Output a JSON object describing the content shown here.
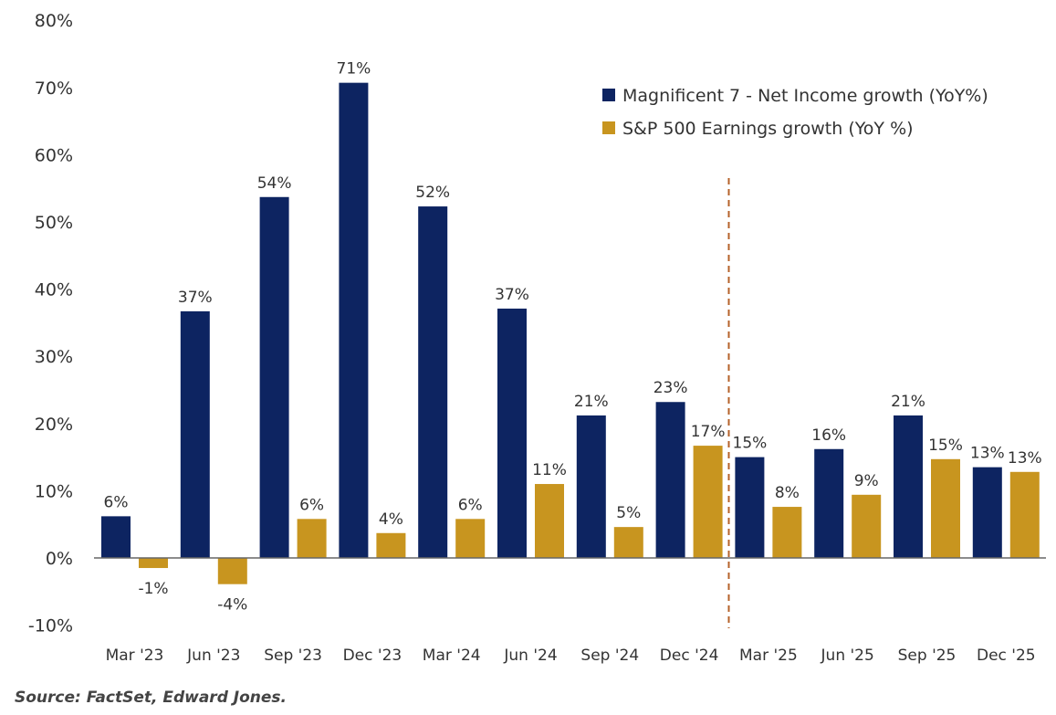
{
  "chart_data": {
    "type": "bar",
    "title": "",
    "xlabel": "",
    "ylabel": "",
    "ylim": [
      -10,
      80
    ],
    "yticks": [
      "-10%",
      "0%",
      "10%",
      "20%",
      "30%",
      "40%",
      "50%",
      "60%",
      "70%",
      "80%"
    ],
    "ytick_values": [
      -10,
      0,
      10,
      20,
      30,
      40,
      50,
      60,
      70,
      80
    ],
    "categories": [
      "Mar '23",
      "Jun '23",
      "Sep '23",
      "Dec '23",
      "Mar '24",
      "Jun '24",
      "Sep '24",
      "Dec '24",
      "Mar '25",
      "Jun '25",
      "Sep '25",
      "Dec '25"
    ],
    "series": [
      {
        "name": "Magnificent 7 - Net Income growth (YoY%)",
        "color": "#0d2461",
        "values": [
          6.2,
          36.7,
          53.7,
          70.7,
          52.3,
          37.1,
          21.2,
          23.2,
          15.0,
          16.2,
          21.2,
          13.5
        ],
        "labels": [
          "6%",
          "37%",
          "54%",
          "71%",
          "52%",
          "37%",
          "21%",
          "23%",
          "15%",
          "16%",
          "21%",
          "13%"
        ]
      },
      {
        "name": "S&P 500 Earnings growth (YoY %)",
        "color": "#c8951f",
        "values": [
          -1.5,
          -3.9,
          5.8,
          3.7,
          5.8,
          11.0,
          4.6,
          16.7,
          7.6,
          9.4,
          14.7,
          12.8
        ],
        "labels": [
          "-1%",
          "-4%",
          "6%",
          "4%",
          "6%",
          "11%",
          "5%",
          "17%",
          "8%",
          "9%",
          "15%",
          "13%"
        ]
      }
    ],
    "divider": {
      "after_category": "Dec '24",
      "style": "dashed",
      "color": "#b5622a"
    },
    "legend_position": "top-right",
    "grid": false
  },
  "source": "Source: FactSet, Edward Jones."
}
